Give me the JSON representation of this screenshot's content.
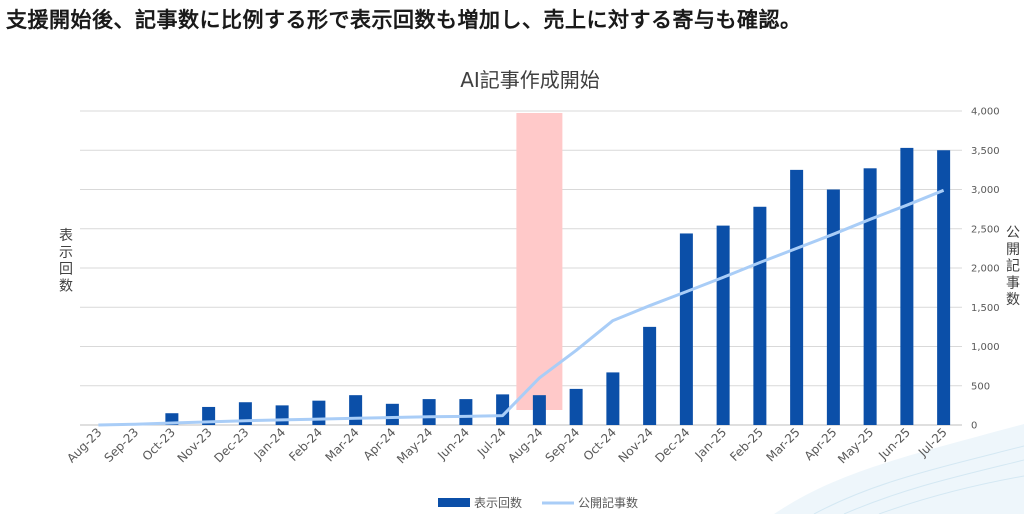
{
  "headline": "支援開始後、記事数に比例する形で表示回数も増加し、売上に対する寄与も確認。",
  "chart_data": {
    "type": "bar+line",
    "title": "AI記事作成開始",
    "categories": [
      "Aug-23",
      "Sep-23",
      "Oct-23",
      "Nov-23",
      "Dec-23",
      "Jan-24",
      "Feb-24",
      "Mar-24",
      "Apr-24",
      "May-24",
      "Jun-24",
      "Jul-24",
      "Aug-24",
      "Sep-24",
      "Oct-24",
      "Nov-24",
      "Dec-24",
      "Jan-25",
      "Feb-25",
      "Mar-25",
      "Apr-25",
      "May-25",
      "Jun-25",
      "Jul-25"
    ],
    "series": [
      {
        "name": "表示回数",
        "type": "bar",
        "axis": "left",
        "color": "#0b4fa8",
        "values": [
          0,
          2,
          15,
          23,
          29,
          25,
          31,
          38,
          27,
          33,
          33,
          39,
          38,
          46,
          67,
          125,
          244,
          254,
          278,
          325,
          300,
          327,
          353,
          350
        ]
      },
      {
        "name": "公開記事数",
        "type": "line",
        "axis": "right",
        "color": "#a9cdf7",
        "values": [
          0,
          10,
          25,
          40,
          55,
          65,
          75,
          85,
          95,
          105,
          110,
          120,
          600,
          950,
          1330,
          1520,
          1700,
          1880,
          2070,
          2250,
          2430,
          2620,
          2800,
          2990
        ]
      }
    ],
    "y_left": {
      "label": "表示回数",
      "ylim": [
        0,
        400
      ],
      "tick_labels_shown": false
    },
    "y_right": {
      "label": "公開記事数",
      "ylim": [
        0,
        4000
      ],
      "ticks": [
        "0",
        "500",
        "1,000",
        "1,500",
        "2,000",
        "2,500",
        "3,000",
        "3,500",
        "4,000"
      ]
    },
    "highlight": {
      "category": "Aug-24",
      "color": "#ffc9c9"
    },
    "grid": true,
    "legend": {
      "position": "bottom"
    }
  }
}
